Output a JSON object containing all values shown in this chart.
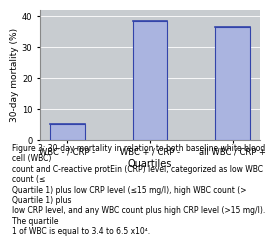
{
  "categories": [
    "WBC - / CRP -",
    "WBC + / CRP -",
    "all WBC / CRP +"
  ],
  "values": [
    5.0,
    38.5,
    36.5
  ],
  "bar_color": "#aab4e0",
  "bar_edge_color": "#3344aa",
  "title": "",
  "xlabel": "Quartiles",
  "ylabel": "30-day mortality (%)",
  "ylim": [
    0,
    42
  ],
  "yticks": [
    0,
    10,
    20,
    30,
    40
  ],
  "background_color": "#ffffff",
  "plot_bg_color": "#c8ccd0",
  "bar_width": 0.42,
  "xlabel_fontsize": 7,
  "ylabel_fontsize": 6.5,
  "tick_fontsize": 6,
  "caption": "Figure 3: 30-day mortality in relation to both baseline white blood cell (WBC)\ncount and C-reactive protEin (CRP) level, categorized as low WBC count (≤\nQuartile 1) plus low CRP level (≤15 mg/l), high WBC count (> Quartile 1) plus\nlow CRP level, and any WBC count plus high CRP level (>15 mg/l). The quartile\n1 of WBC is equal to 3.4 to 6.5 x10⁴.",
  "caption_fontsize": 5.5
}
